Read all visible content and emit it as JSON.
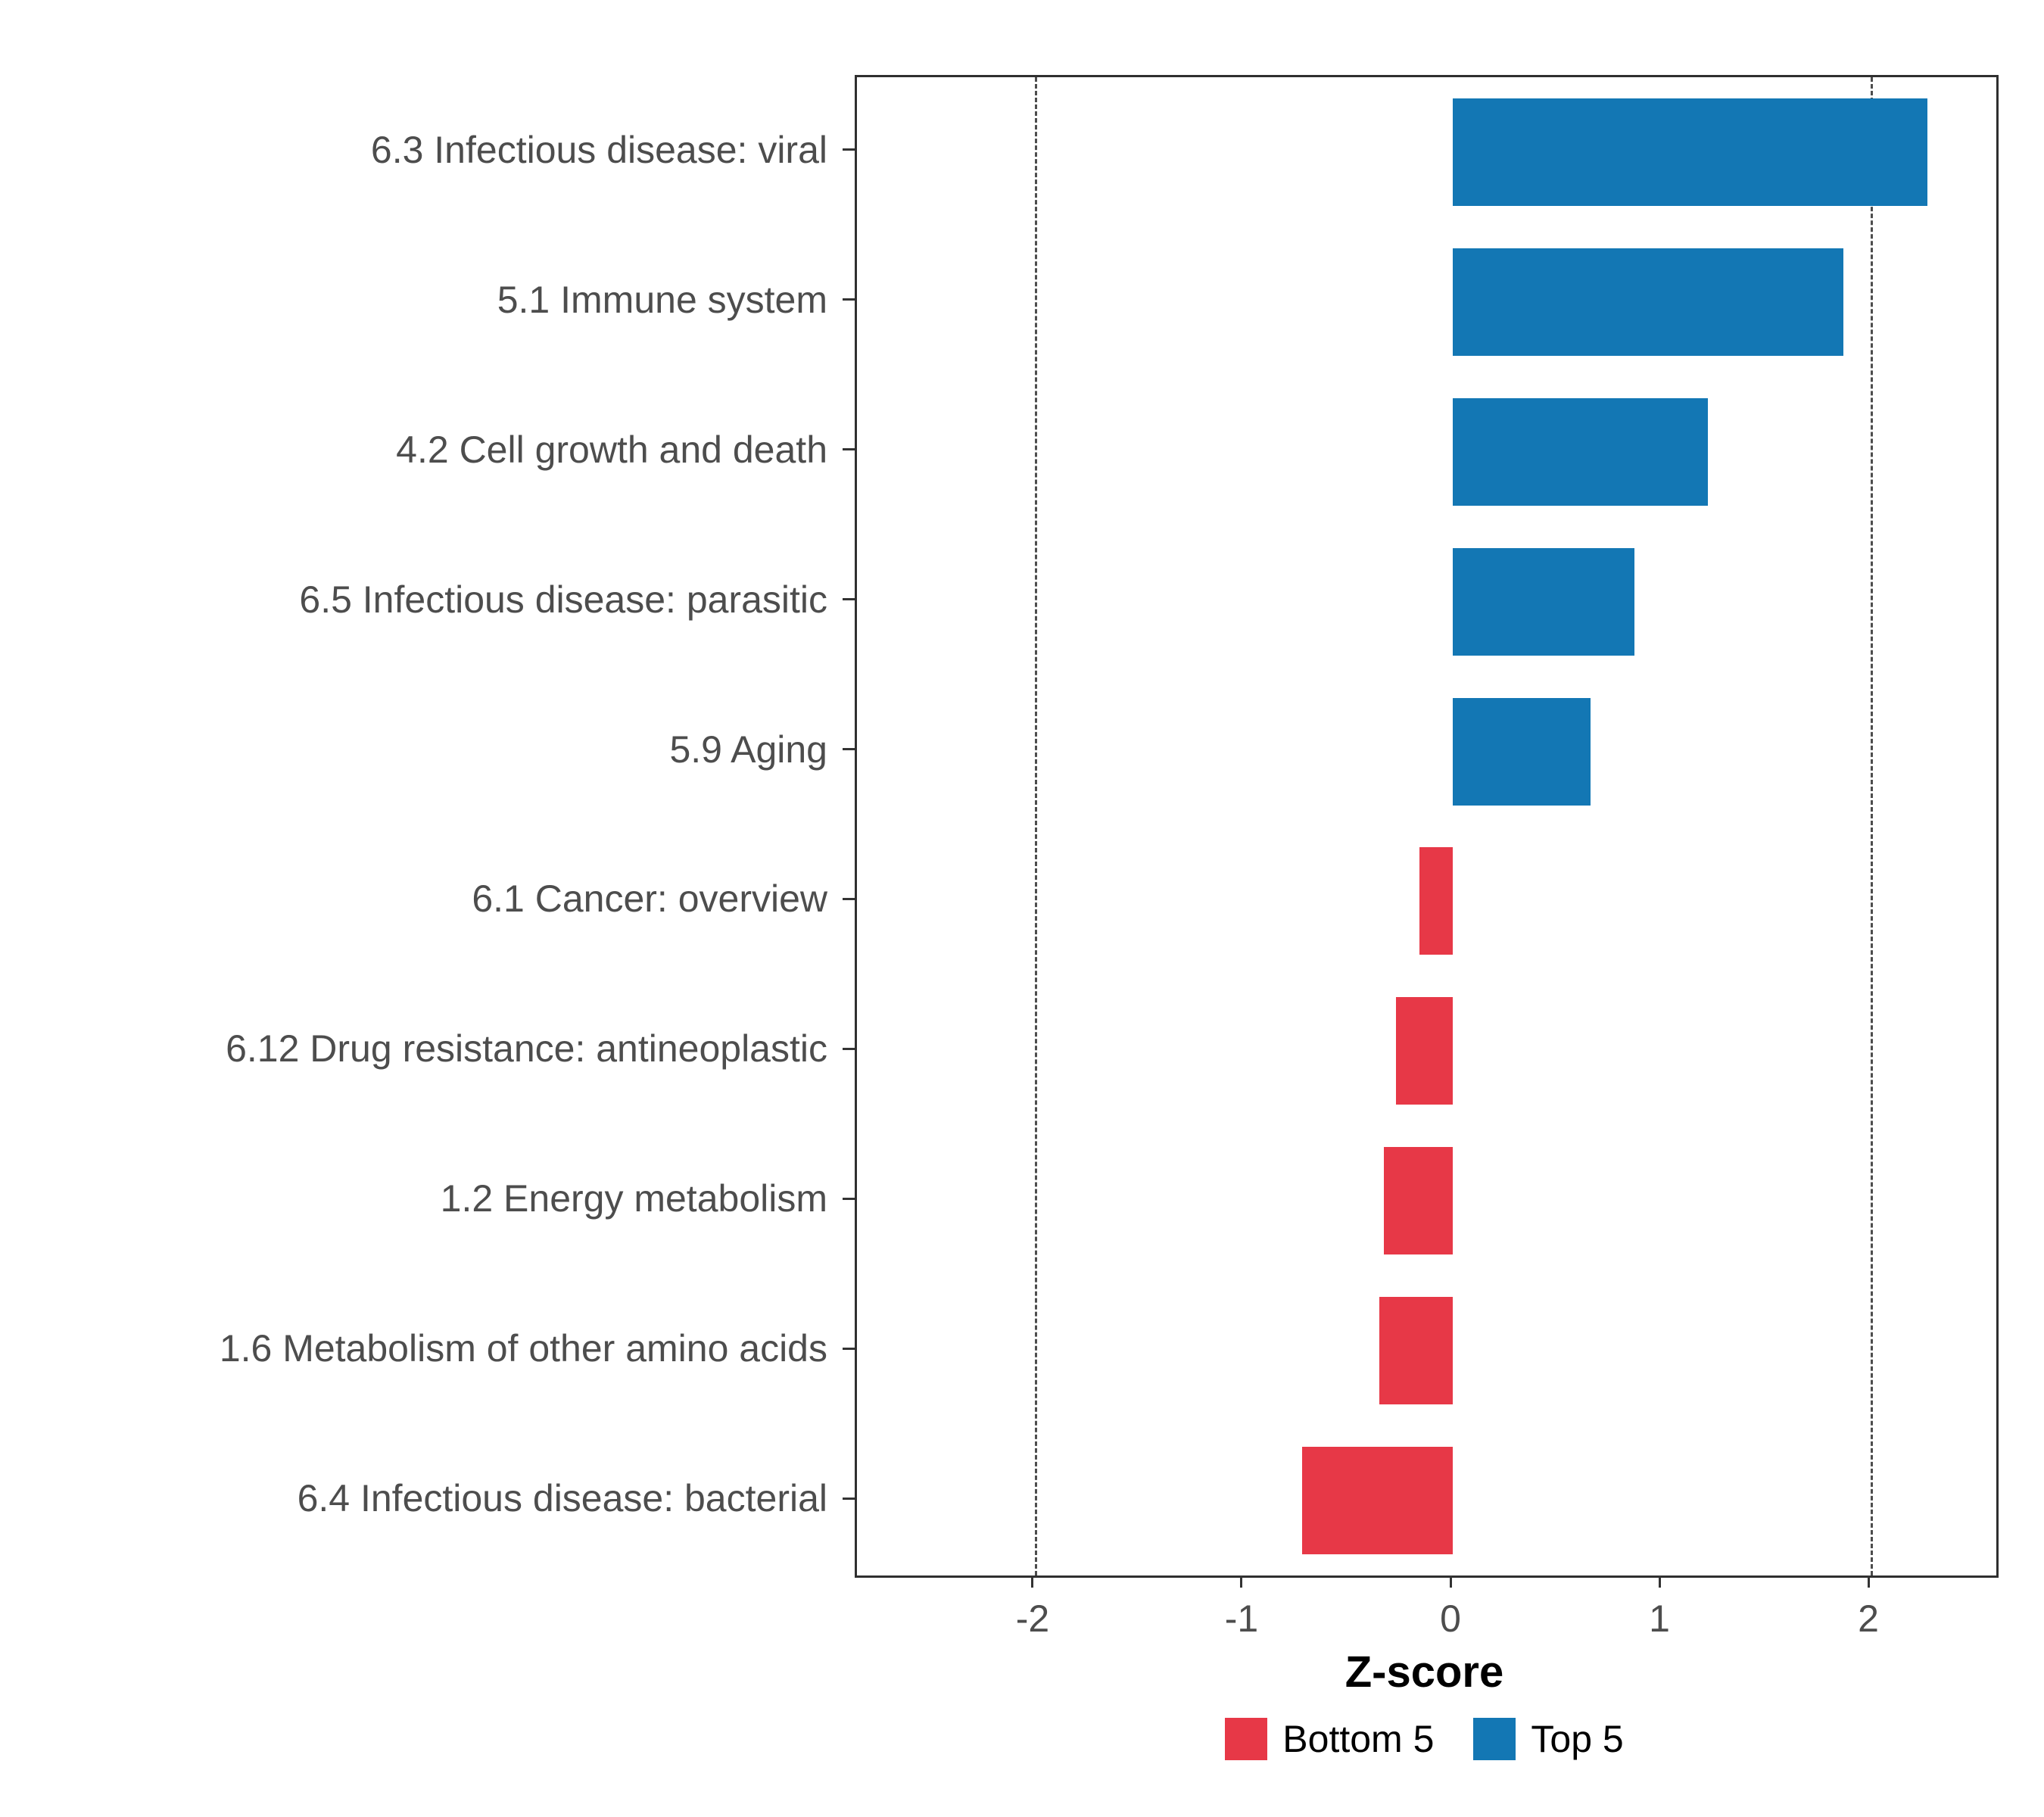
{
  "chart_data": {
    "type": "bar",
    "orientation": "horizontal",
    "title": "",
    "xlabel": "Z-score",
    "ylabel": "",
    "xlim": [
      -2.85,
      2.6
    ],
    "x_ticks": [
      -2,
      -1,
      0,
      1,
      2
    ],
    "reference_lines": [
      -2,
      2
    ],
    "grid": false,
    "legend_position": "bottom",
    "categories": [
      "6.3 Infectious disease: viral",
      "5.1 Immune system",
      "4.2 Cell growth and death",
      "6.5 Infectious disease: parasitic",
      "5.9 Aging",
      "6.1 Cancer: overview",
      "6.12 Drug resistance: antineoplastic",
      "1.2 Energy metabolism",
      "1.6 Metabolism of other amino acids",
      "6.4 Infectious disease: bacterial"
    ],
    "values": [
      2.27,
      1.87,
      1.22,
      0.87,
      0.66,
      -0.16,
      -0.27,
      -0.33,
      -0.35,
      -0.72
    ],
    "groups": [
      "Top 5",
      "Top 5",
      "Top 5",
      "Top 5",
      "Top 5",
      "Bottom 5",
      "Bottom 5",
      "Bottom 5",
      "Bottom 5",
      "Bottom 5"
    ],
    "legend": [
      {
        "label": "Bottom 5",
        "color": "#E73847"
      },
      {
        "label": "Top 5",
        "color": "#1377B4"
      }
    ],
    "colors": {
      "reference_line": "#4d4d4d",
      "panel_border": "#2f2f2f",
      "axis_text": "#4d4d4d"
    }
  }
}
